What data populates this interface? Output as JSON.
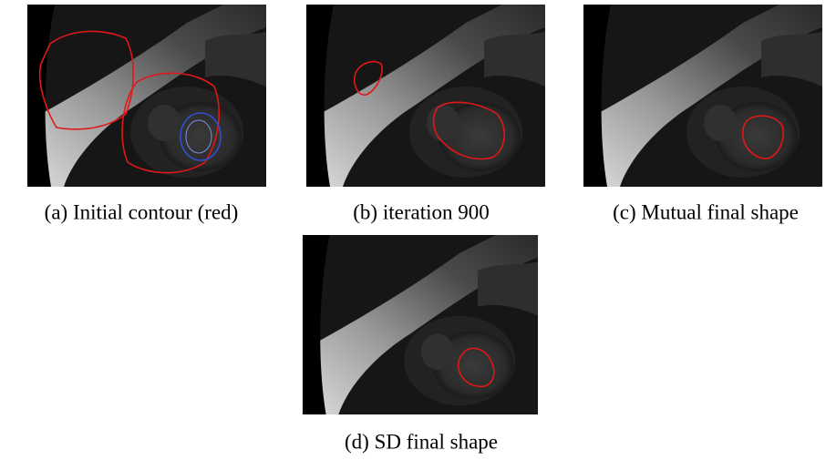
{
  "figure": {
    "panels": [
      {
        "caption": "(a) Initial contour (red)"
      },
      {
        "caption": "(b) iteration 900"
      },
      {
        "caption": "(c) Mutual final shape"
      },
      {
        "caption": "(d) SD final shape"
      }
    ]
  }
}
